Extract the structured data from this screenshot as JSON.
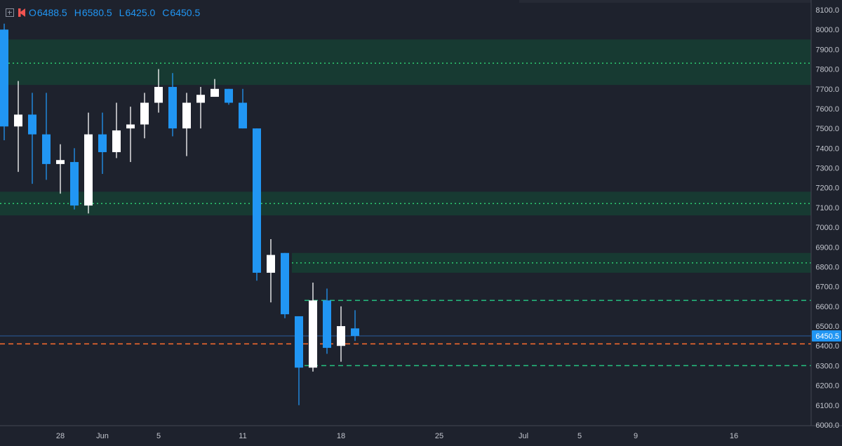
{
  "legend": {
    "open_label": "O",
    "open": "6488.5",
    "high_label": "H",
    "high": "6580.5",
    "low_label": "L",
    "low": "6425.0",
    "close_label": "C",
    "close": "6450.5"
  },
  "colors": {
    "background": "#1e222d",
    "bull_candle": "#ffffff",
    "bear_candle": "#2196f3",
    "zone_fill": "#173a32",
    "zone_line": "#2ecc71",
    "dashed_green": "#26c281",
    "dashed_orange": "#ff6d2e",
    "axis_text": "#c3c6ce",
    "price_label_bg": "#2196f3"
  },
  "chart_data": {
    "type": "candlestick",
    "ylim": [
      6000,
      8100
    ],
    "y_ticks": [
      "8100.0",
      "8000.0",
      "7900.0",
      "7800.0",
      "7700.0",
      "7600.0",
      "7500.0",
      "7400.0",
      "7300.0",
      "7200.0",
      "7100.0",
      "7000.0",
      "6900.0",
      "6800.0",
      "6700.0",
      "6600.0",
      "6500.0",
      "6400.0",
      "6300.0",
      "6200.0",
      "6100.0",
      "6000.0"
    ],
    "x_ticks": [
      {
        "label": "28",
        "day": 4
      },
      {
        "label": "Jun",
        "day": 7
      },
      {
        "label": "5",
        "day": 11
      },
      {
        "label": "11",
        "day": 17
      },
      {
        "label": "18",
        "day": 24
      },
      {
        "label": "25",
        "day": 31
      },
      {
        "label": "Jul",
        "day": 37
      },
      {
        "label": "5",
        "day": 41
      },
      {
        "label": "9",
        "day": 45
      },
      {
        "label": "16",
        "day": 52
      }
    ],
    "x_range": [
      -0.3,
      57.5
    ],
    "candles": [
      {
        "day": 0,
        "open": 8000,
        "high": 8030,
        "low": 7440,
        "close": 7510
      },
      {
        "day": 1,
        "open": 7510,
        "high": 7740,
        "low": 7280,
        "close": 7570
      },
      {
        "day": 2,
        "open": 7570,
        "high": 7680,
        "low": 7220,
        "close": 7470
      },
      {
        "day": 3,
        "open": 7470,
        "high": 7680,
        "low": 7240,
        "close": 7320
      },
      {
        "day": 4,
        "open": 7320,
        "high": 7420,
        "low": 7170,
        "close": 7340
      },
      {
        "day": 5,
        "open": 7330,
        "high": 7400,
        "low": 7090,
        "close": 7110
      },
      {
        "day": 6,
        "open": 7110,
        "high": 7580,
        "low": 7070,
        "close": 7470
      },
      {
        "day": 7,
        "open": 7470,
        "high": 7580,
        "low": 7270,
        "close": 7380
      },
      {
        "day": 8,
        "open": 7380,
        "high": 7630,
        "low": 7350,
        "close": 7490
      },
      {
        "day": 9,
        "open": 7500,
        "high": 7610,
        "low": 7330,
        "close": 7520
      },
      {
        "day": 10,
        "open": 7520,
        "high": 7680,
        "low": 7450,
        "close": 7630
      },
      {
        "day": 11,
        "open": 7630,
        "high": 7800,
        "low": 7580,
        "close": 7710
      },
      {
        "day": 12,
        "open": 7710,
        "high": 7780,
        "low": 7460,
        "close": 7500
      },
      {
        "day": 13,
        "open": 7500,
        "high": 7680,
        "low": 7360,
        "close": 7630
      },
      {
        "day": 14,
        "open": 7630,
        "high": 7710,
        "low": 7500,
        "close": 7670
      },
      {
        "day": 15,
        "open": 7660,
        "high": 7750,
        "low": 7660,
        "close": 7700
      },
      {
        "day": 16,
        "open": 7700,
        "high": 7700,
        "low": 7620,
        "close": 7630
      },
      {
        "day": 17,
        "open": 7630,
        "high": 7700,
        "low": 7500,
        "close": 7500
      },
      {
        "day": 18,
        "open": 7500,
        "high": 7500,
        "low": 6730,
        "close": 6770
      },
      {
        "day": 19,
        "open": 6770,
        "high": 6940,
        "low": 6620,
        "close": 6860
      },
      {
        "day": 20,
        "open": 6870,
        "high": 6870,
        "low": 6540,
        "close": 6560
      },
      {
        "day": 21,
        "open": 6550,
        "high": 6550,
        "low": 6100,
        "close": 6290
      },
      {
        "day": 22,
        "open": 6290,
        "high": 6720,
        "low": 6270,
        "close": 6630
      },
      {
        "day": 23,
        "open": 6630,
        "high": 6690,
        "low": 6360,
        "close": 6390
      },
      {
        "day": 24,
        "open": 6400,
        "high": 6600,
        "low": 6320,
        "close": 6500
      },
      {
        "day": 25,
        "open": 6488.5,
        "high": 6580.5,
        "low": 6425.0,
        "close": 6450.5
      }
    ],
    "zones": [
      {
        "low": 7720,
        "high": 7950,
        "mid": 7830,
        "from_day": -0.3
      },
      {
        "low": 7060,
        "high": 7180,
        "mid": 7120,
        "from_day": -0.3
      },
      {
        "low": 6770,
        "high": 6870,
        "mid": 6820,
        "from_day": 20.5
      }
    ],
    "dashed_levels": [
      {
        "price": 6630,
        "from_day": 21.4,
        "color": "green"
      },
      {
        "price": 6300,
        "from_day": 21.4,
        "color": "green"
      },
      {
        "price": 6410,
        "from_day": -0.3,
        "color": "orange"
      }
    ],
    "last_price": 6450.5,
    "last_price_label": "6450.5"
  }
}
